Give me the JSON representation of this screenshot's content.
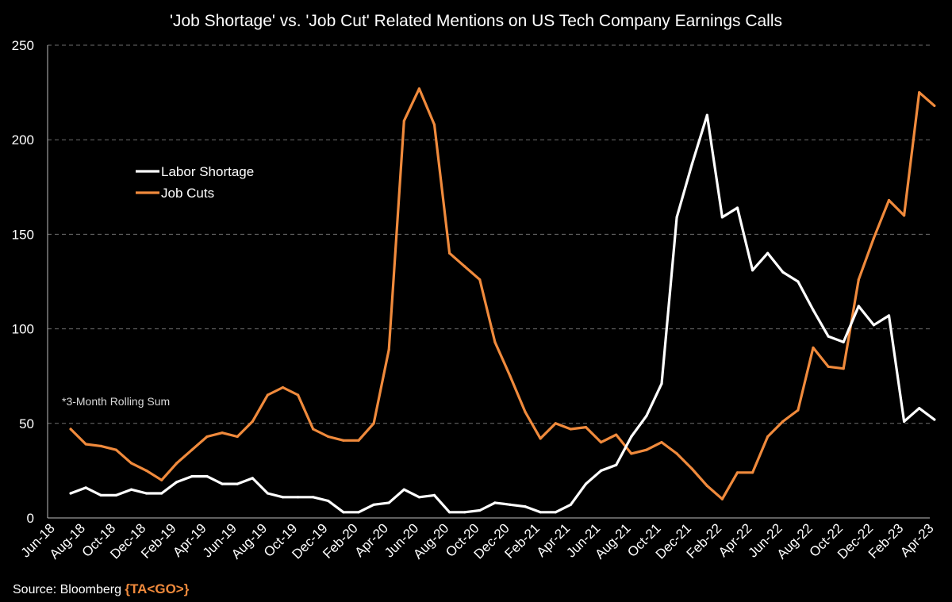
{
  "chart_data": {
    "type": "line",
    "title": "'Job Shortage' vs. 'Job Cut' Related Mentions on US Tech Company Earnings Calls",
    "annotation": "*3-Month Rolling Sum",
    "ylim": [
      0,
      250
    ],
    "y_ticks": [
      0,
      50,
      100,
      150,
      200,
      250
    ],
    "grid": "horizontal dashed",
    "legend_position": "upper-left",
    "x_tick_labels": [
      "Jun-18",
      "Aug-18",
      "Oct-18",
      "Dec-18",
      "Feb-19",
      "Apr-19",
      "Jun-19",
      "Aug-19",
      "Oct-19",
      "Dec-19",
      "Feb-20",
      "Apr-20",
      "Jun-20",
      "Aug-20",
      "Oct-20",
      "Dec-20",
      "Feb-21",
      "Apr-21",
      "Jun-21",
      "Aug-21",
      "Oct-21",
      "Dec-21",
      "Feb-22",
      "Apr-22",
      "Jun-22",
      "Aug-22",
      "Oct-22",
      "Dec-22",
      "Feb-23",
      "Apr-23"
    ],
    "x": [
      "Jul-18",
      "Aug-18",
      "Sep-18",
      "Oct-18",
      "Nov-18",
      "Dec-18",
      "Jan-19",
      "Feb-19",
      "Mar-19",
      "Apr-19",
      "May-19",
      "Jun-19",
      "Jul-19",
      "Aug-19",
      "Sep-19",
      "Oct-19",
      "Nov-19",
      "Dec-19",
      "Jan-20",
      "Feb-20",
      "Mar-20",
      "Apr-20",
      "May-20",
      "Jun-20",
      "Jul-20",
      "Aug-20",
      "Sep-20",
      "Oct-20",
      "Nov-20",
      "Dec-20",
      "Jan-21",
      "Feb-21",
      "Mar-21",
      "Apr-21",
      "May-21",
      "Jun-21",
      "Jul-21",
      "Aug-21",
      "Sep-21",
      "Oct-21",
      "Nov-21",
      "Dec-21",
      "Jan-22",
      "Feb-22",
      "Mar-22",
      "Apr-22",
      "May-22",
      "Jun-22",
      "Jul-22",
      "Aug-22",
      "Sep-22",
      "Oct-22",
      "Nov-22",
      "Dec-22",
      "Jan-23",
      "Feb-23",
      "Mar-23",
      "Apr-23"
    ],
    "series": [
      {
        "name": "Labor Shortage",
        "color": "#ffffff",
        "values": [
          13,
          16,
          12,
          12,
          15,
          13,
          13,
          19,
          22,
          22,
          18,
          18,
          21,
          13,
          11,
          11,
          11,
          9,
          3,
          3,
          7,
          8,
          15,
          11,
          12,
          3,
          3,
          4,
          8,
          7,
          6,
          3,
          3,
          7,
          18,
          25,
          28,
          43,
          54,
          71,
          159,
          187,
          213,
          159,
          164,
          131,
          140,
          130,
          125,
          110,
          96,
          93,
          112,
          102,
          107,
          51,
          58,
          52
        ]
      },
      {
        "name": "Job Cuts",
        "color": "#f08a3c",
        "values": [
          47,
          39,
          38,
          36,
          29,
          25,
          20,
          29,
          36,
          43,
          45,
          43,
          51,
          65,
          69,
          65,
          47,
          43,
          41,
          41,
          50,
          89,
          210,
          227,
          208,
          140,
          133,
          126,
          93,
          75,
          56,
          42,
          50,
          47,
          48,
          40,
          44,
          34,
          36,
          40,
          34,
          26,
          17,
          10,
          24,
          24,
          43,
          51,
          57,
          90,
          80,
          79,
          126,
          148,
          168,
          160,
          225,
          218
        ]
      }
    ]
  },
  "footer": {
    "source_label": "Source: Bloomberg",
    "brand": "{TA<GO>}"
  }
}
